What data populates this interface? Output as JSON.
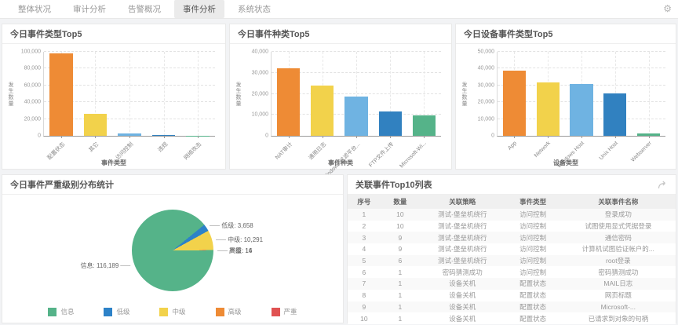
{
  "tabs": [
    {
      "label": "整体状况",
      "active": false
    },
    {
      "label": "审计分析",
      "active": false
    },
    {
      "label": "告警概况",
      "active": false
    },
    {
      "label": "事件分析",
      "active": true
    },
    {
      "label": "系统状态",
      "active": false
    }
  ],
  "colors": {
    "bar_palette": [
      "#ee8b35",
      "#f2d24b",
      "#6fb3e2",
      "#3181c0",
      "#55b389"
    ],
    "active_tab_bg": "#ebebeb",
    "panel_bg": "#ffffff",
    "page_bg": "#f2f3f5"
  },
  "chart_data": [
    {
      "type": "bar",
      "title": "今日事件类型Top5",
      "xlabel": "事件类型",
      "ylabel": "发生数量",
      "categories": [
        "配置状态",
        "其它",
        "访问控制",
        "违规",
        "网络攻击"
      ],
      "values": [
        98000,
        26500,
        2400,
        1300,
        200
      ],
      "ylim": [
        0,
        100000
      ],
      "ytick_step": 20000,
      "bar_colors": [
        "#ee8b35",
        "#f2d24b",
        "#6fb3e2",
        "#3181c0",
        "#55b389"
      ],
      "grid": "dashed"
    },
    {
      "type": "bar",
      "title": "今日事件种类Top5",
      "xlabel": "事件种类",
      "ylabel": "发生数量",
      "categories": [
        "NAT审计",
        "通用日志",
        "Windows 过滤平台...",
        "FTP文件上传",
        "Microsoft-Wi..."
      ],
      "values": [
        32200,
        24000,
        18800,
        11700,
        9700
      ],
      "ylim": [
        0,
        40000
      ],
      "ytick_step": 10000,
      "bar_colors": [
        "#ee8b35",
        "#f2d24b",
        "#6fb3e2",
        "#3181c0",
        "#55b389"
      ],
      "grid": "dashed"
    },
    {
      "type": "bar",
      "title": "今日设备事件类型Top5",
      "xlabel": "设备类型",
      "ylabel": "发生数量",
      "categories": [
        "App",
        "Network",
        "Windows Host",
        "Unix Host",
        "Webserver"
      ],
      "values": [
        39000,
        32000,
        30900,
        25400,
        1200
      ],
      "ylim": [
        0,
        50000
      ],
      "ytick_step": 10000,
      "bar_colors": [
        "#ee8b35",
        "#f2d24b",
        "#6fb3e2",
        "#3181c0",
        "#55b389"
      ],
      "grid": "dashed"
    },
    {
      "type": "pie",
      "title": "今日事件严重级别分布统计",
      "slices": [
        {
          "label": "信息",
          "value": 116189,
          "color": "#55b389"
        },
        {
          "label": "低级",
          "value": 3658,
          "color": "#2d82c8"
        },
        {
          "label": "中级",
          "value": 10291,
          "color": "#f2d24b"
        },
        {
          "label": "高级",
          "value": 16,
          "color": "#ee8b35"
        },
        {
          "label": "严重",
          "value": 14,
          "color": "#e05252"
        }
      ],
      "legend_position": "bottom",
      "legend": [
        "信息",
        "低级",
        "中级",
        "高级",
        "严重"
      ]
    }
  ],
  "table": {
    "title": "关联事件Top10列表",
    "columns": [
      "序号",
      "数量",
      "关联策略",
      "事件类型",
      "关联事件名称"
    ],
    "rows": [
      [
        "1",
        "10",
        "测试-堡垒机绕行",
        "访问控制",
        "登录成功"
      ],
      [
        "2",
        "10",
        "测试-堡垒机绕行",
        "访问控制",
        "试图使用显式凭据登录"
      ],
      [
        "3",
        "9",
        "测试-堡垒机绕行",
        "访问控制",
        "通信密码"
      ],
      [
        "4",
        "9",
        "测试-堡垒机绕行",
        "访问控制",
        "计算机试图验证帐户的..."
      ],
      [
        "5",
        "6",
        "测试-堡垒机绕行",
        "访问控制",
        "root登录"
      ],
      [
        "6",
        "1",
        "密码猜测成功",
        "访问控制",
        "密码猜测成功"
      ],
      [
        "7",
        "1",
        "设备关机",
        "配置状态",
        "MAIL日志"
      ],
      [
        "8",
        "1",
        "设备关机",
        "配置状态",
        "网页标题"
      ],
      [
        "9",
        "1",
        "设备关机",
        "配置状态",
        "Microsoft-..."
      ],
      [
        "10",
        "1",
        "设备关机",
        "配置状态",
        "已请求到对象的句柄"
      ]
    ]
  }
}
